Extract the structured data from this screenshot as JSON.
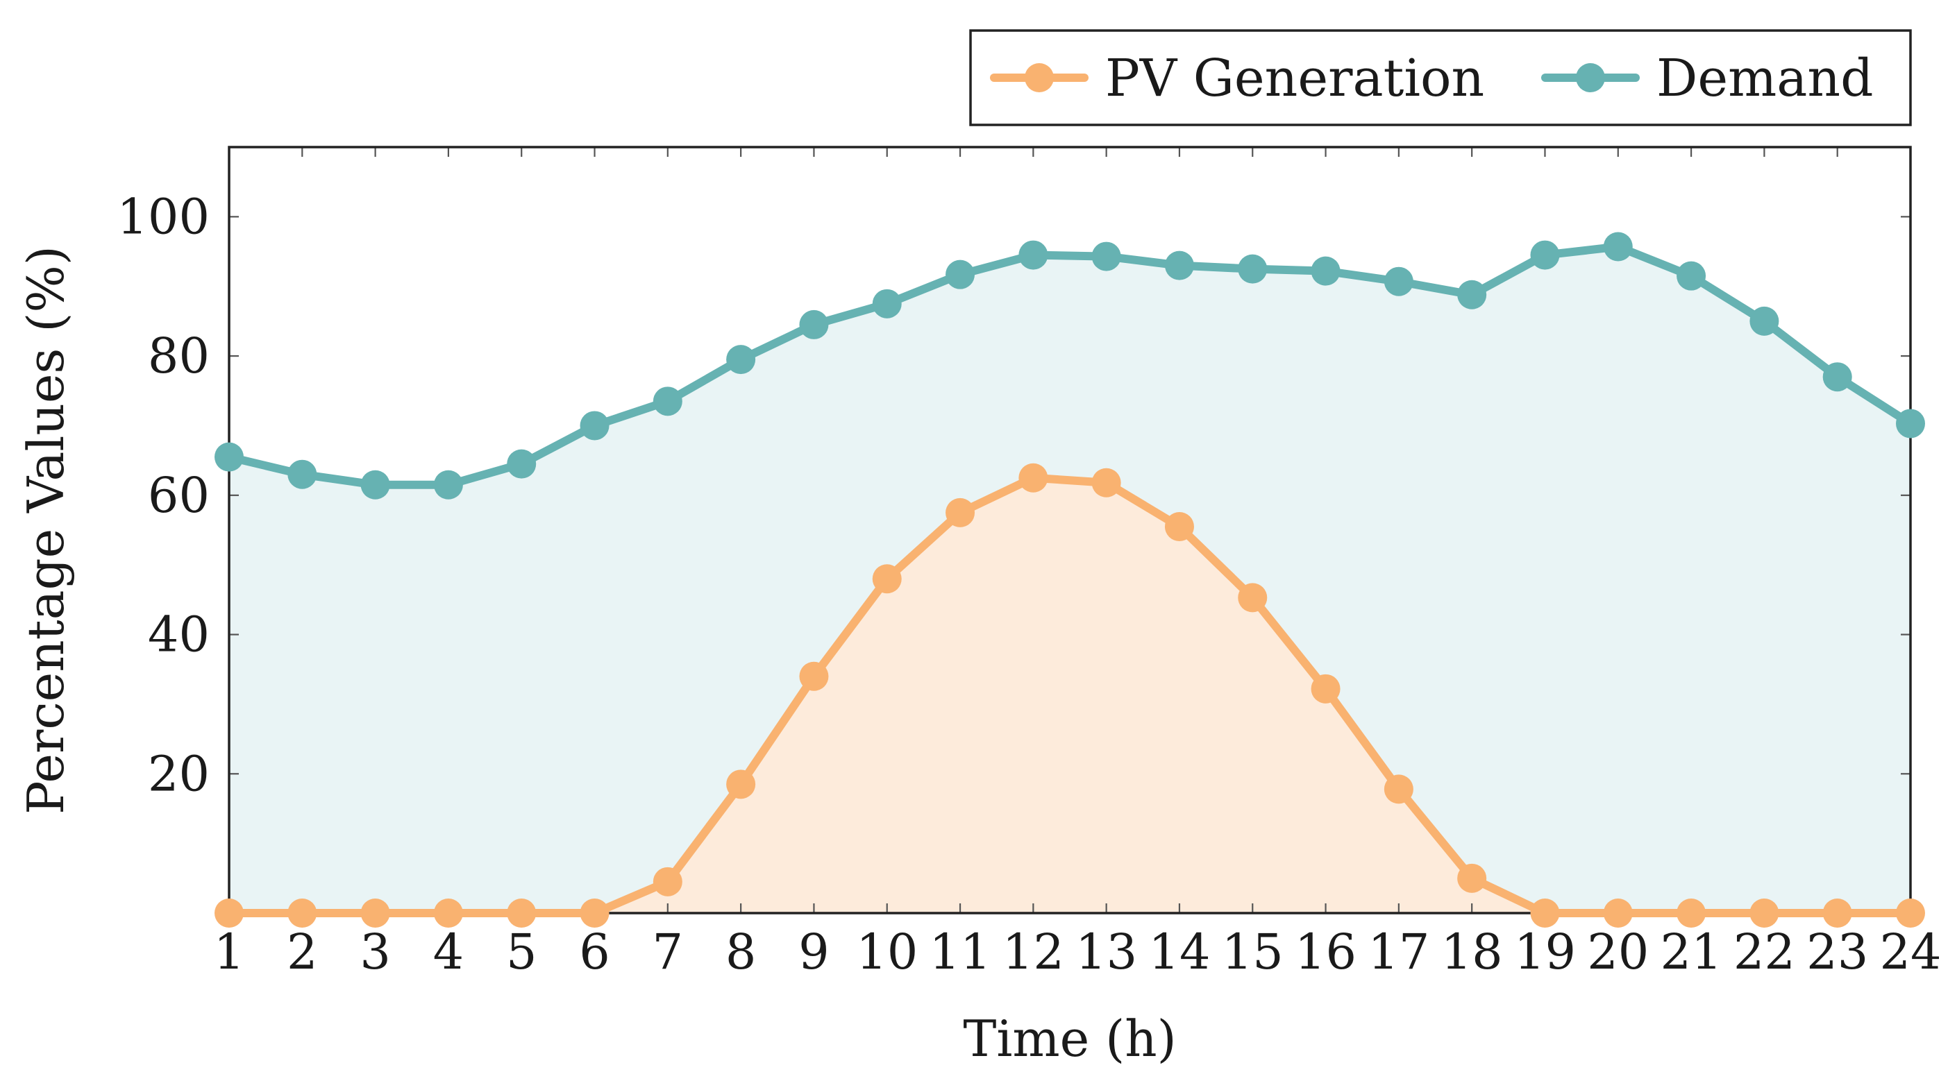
{
  "chart_data": {
    "type": "area",
    "title": "",
    "xlabel": "Time (h)",
    "ylabel": "Percentage Values (%)",
    "x": [
      1,
      2,
      3,
      4,
      5,
      6,
      7,
      8,
      9,
      10,
      11,
      12,
      13,
      14,
      15,
      16,
      17,
      18,
      19,
      20,
      21,
      22,
      23,
      24
    ],
    "xlim": [
      1,
      24
    ],
    "ylim": [
      0,
      110
    ],
    "yticks": [
      20,
      40,
      60,
      80,
      100
    ],
    "grid": false,
    "legend_position": "top-right, above plot",
    "series": [
      {
        "name": "PV Generation",
        "color": "#F9B270",
        "fill": "#FDEBDB",
        "values": [
          0,
          0,
          0,
          0,
          0,
          0,
          4.5,
          18.5,
          34,
          48,
          57.5,
          62.5,
          61.8,
          55.5,
          45.3,
          32.2,
          17.8,
          5,
          0,
          0,
          0,
          0,
          0,
          0
        ]
      },
      {
        "name": "Demand",
        "color": "#66B2B2",
        "fill": "#E9F4F5",
        "values": [
          65.5,
          63,
          61.5,
          61.5,
          64.5,
          70,
          73.5,
          79.5,
          84.5,
          87.5,
          91.7,
          94.5,
          94.3,
          93,
          92.5,
          92.2,
          90.7,
          88.8,
          94.5,
          95.7,
          91.5,
          85,
          77,
          70.3
        ]
      }
    ]
  }
}
